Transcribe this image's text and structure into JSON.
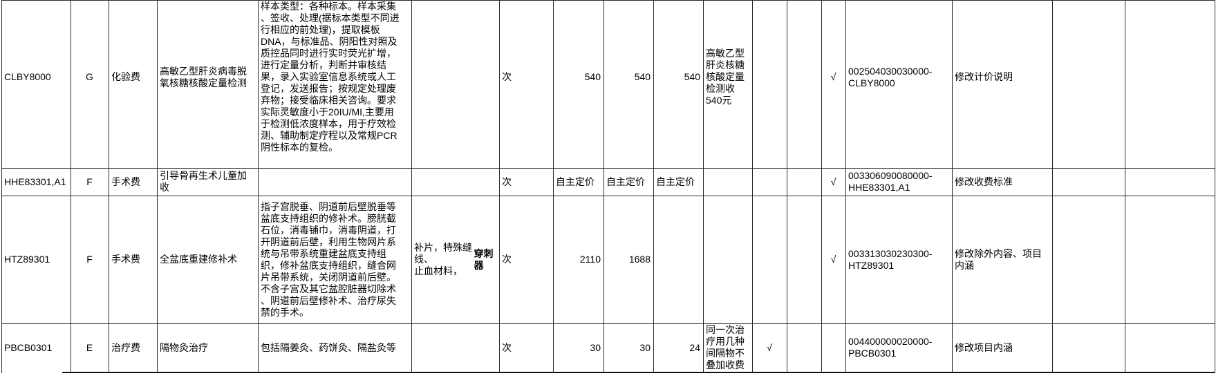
{
  "sheet": {
    "check_mark_glyph": "√",
    "rows": [
      {
        "code": "CLBY8000",
        "grade": "G",
        "category": "化验费",
        "name": "高敏乙型肝炎病毒脱\n氧核糖核酸定量检测",
        "description": "样本类型：各种标本。样本采集\n、签收、处理(据标本类型不同进\n行相应的前处理)，提取模板\nDNA，与标准品、阴阳性对照及\n质控品同时进行实时荧光扩增，\n进行定量分析，判断并审核结\n果，录入实验室信息系统或人工\n登记，发送报告；按规定处理废\n弃物；接受临床相关咨询。要求\n实际灵敏度小于20IU/MI,主要用\n于检测低浓度样本，用于疗效检\n测、辅助制定疗程以及常规PCR\n阴性标本的复检。",
        "exclusions": "",
        "exclusions_bold": "",
        "unit": "次",
        "price1": "540",
        "price2": "540",
        "price3": "540",
        "note": "高敏乙型\n肝炎核糖\n核酸定量\n检测收\n540元",
        "note_check": "",
        "code_check": "√",
        "national_code": "002504030030000-\nCLBY8000",
        "modification": "修改计价说明"
      },
      {
        "code": "HHE83301,A1",
        "grade": "F",
        "category": "手术费",
        "name": "引导骨再生术儿童加\n收",
        "description": "",
        "exclusions": "",
        "exclusions_bold": "",
        "unit": "次",
        "price1": "自主定价",
        "price2": "自主定价",
        "price3": "自主定价",
        "note": "",
        "note_check": "",
        "code_check": "√",
        "national_code": "003306090080000-\nHHE83301,A1",
        "modification": "修改收费标准"
      },
      {
        "code": "HTZ89301",
        "grade": "F",
        "category": "手术费",
        "name": "全盆底重建修补术",
        "description": "指子宫脱垂、阴道前后壁脱垂等\n盆底支持组织的修补术。膀胱截\n石位，消毒铺巾，消毒阴道，打\n开阴道前后壁，利用生物网片系\n统与吊带系统重建盆底支持组\n织，修补盆底支持组织，缝合网\n片吊带系统，关闭阴道前后壁。\n不含子宫及其它盆腔脏器切除术\n、阴道前后壁修补术、治疗尿失\n禁的手术。",
        "exclusions": "补片，特殊缝线、\n止血材料，",
        "exclusions_bold": "穿刺器",
        "unit": "次",
        "price1": "2110",
        "price2": "1688",
        "price3": "",
        "note": "",
        "note_check": "",
        "code_check": "√",
        "national_code": "003313030230300-\nHTZ89301",
        "modification": "修改除外内容、项目\n内涵"
      },
      {
        "code": "PBCB0301",
        "grade": "E",
        "category": "治疗费",
        "name": "隔物灸治疗",
        "description": "包括隔姜灸、药饼灸、隔盐灸等",
        "exclusions": "",
        "exclusions_bold": "",
        "unit": "次",
        "price1": "30",
        "price2": "30",
        "price3": "24",
        "note": "同一次治\n疗用几种\n间隔物不\n叠加收费",
        "note_check": "√",
        "code_check": "",
        "national_code": "004400000020000-\nPBCB0301",
        "modification": "修改项目内涵"
      }
    ]
  }
}
